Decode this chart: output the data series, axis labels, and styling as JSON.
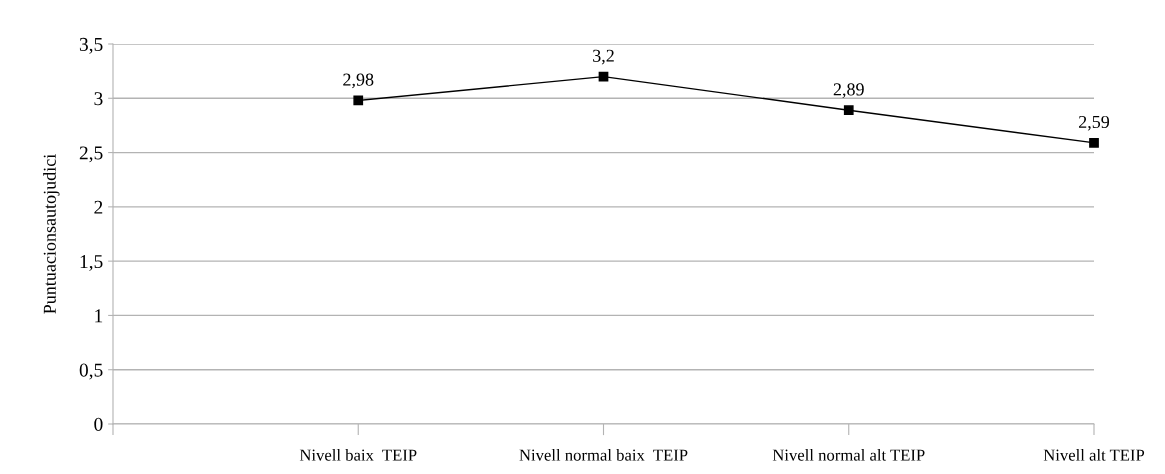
{
  "chart_data": {
    "type": "line",
    "ylabel": "Puntuacionsautojudici",
    "categories": [
      null,
      "Nivell baix  TEIP",
      "Nivell normal baix  TEIP",
      "Nivell normal alt TEIP",
      "Nivell alt TEIP"
    ],
    "series": [
      {
        "color": "#000000",
        "values": [
          null,
          2.98,
          3.2,
          2.89,
          2.59
        ],
        "value_labels": [
          null,
          "2,98",
          "3,2",
          "2,89",
          "2,59"
        ]
      }
    ],
    "ylim": [
      0,
      3.5
    ],
    "yticks": [
      0,
      {
        "value": 0.5,
        "label": "0,5"
      },
      1,
      {
        "value": 1.5,
        "label": "1,5"
      },
      2,
      {
        "value": 2.5,
        "label": "2,5"
      },
      3,
      {
        "value": 3.5,
        "label": "3,5"
      }
    ],
    "grid": "y",
    "marker": "square",
    "line_style": "solid",
    "legend": false
  }
}
